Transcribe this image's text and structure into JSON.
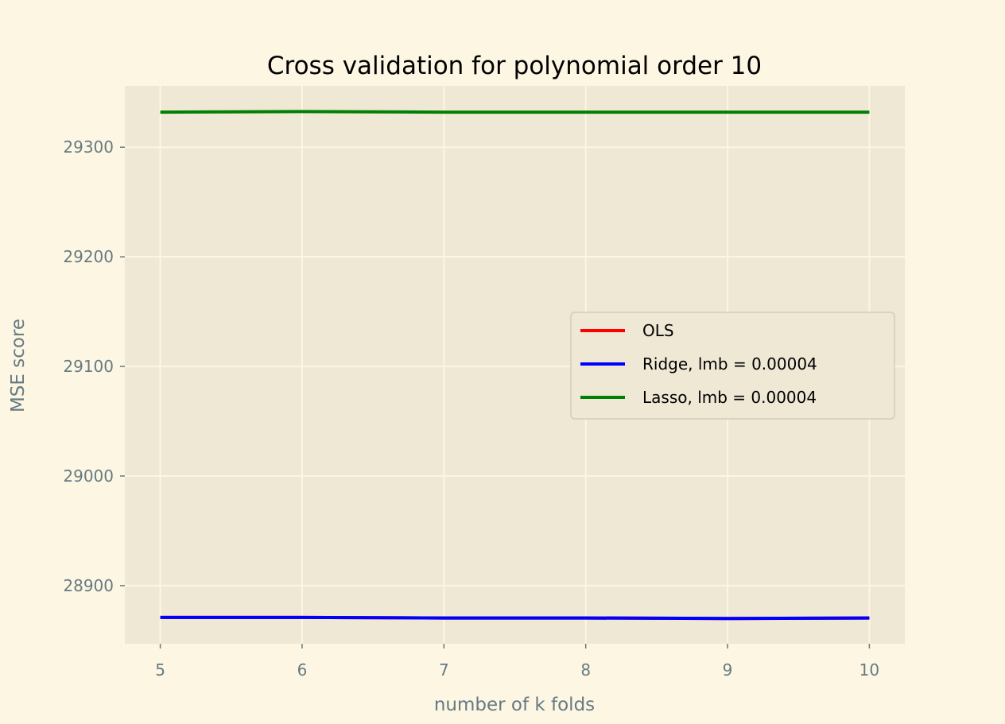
{
  "chart_data": {
    "type": "line",
    "title": "Cross validation for polynomial order 10",
    "xlabel": "number of k folds",
    "ylabel": "MSE score",
    "x": [
      5,
      6,
      7,
      8,
      9,
      10
    ],
    "xlim": [
      4.75,
      10.25
    ],
    "ylim": [
      28847,
      29356
    ],
    "xticks": [
      5,
      6,
      7,
      8,
      9,
      10
    ],
    "yticks": [
      28900,
      29000,
      29100,
      29200,
      29300
    ],
    "grid": true,
    "legend_position": "center-right",
    "series": [
      {
        "name": "OLS",
        "color": "#ff0000",
        "values": [
          28871,
          28871,
          28870.5,
          28870.5,
          28870,
          28870.5
        ]
      },
      {
        "name": "Ridge, lmb = 0.00004",
        "color": "#0000ff",
        "values": [
          28871,
          28871,
          28870.5,
          28870.5,
          28870,
          28870.5
        ]
      },
      {
        "name": "Lasso, lmb = 0.00004",
        "color": "#008000",
        "values": [
          29332,
          29332.5,
          29332,
          29332,
          29332,
          29332
        ]
      }
    ]
  },
  "colors": {
    "figure_background": "#fdf6e3",
    "plot_background": "#eee8d5",
    "grid": "#fdf6e3",
    "tick_text": "#657b83"
  }
}
